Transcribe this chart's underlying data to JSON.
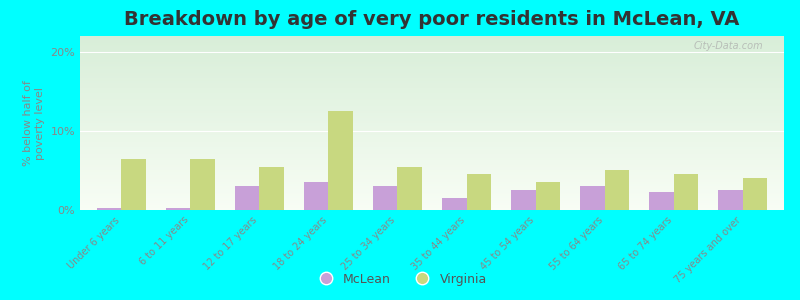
{
  "title": "Breakdown by age of very poor residents in McLean, VA",
  "categories": [
    "Under 6 years",
    "6 to 11 years",
    "12 to 17 years",
    "18 to 24 years",
    "25 to 34 years",
    "35 to 44 years",
    "45 to 54 years",
    "55 to 64 years",
    "65 to 74 years",
    "75 years and over"
  ],
  "mclean_values": [
    0.3,
    0.2,
    3.0,
    3.5,
    3.0,
    1.5,
    2.5,
    3.0,
    2.3,
    2.5
  ],
  "virginia_values": [
    6.5,
    6.5,
    5.5,
    12.5,
    5.5,
    4.5,
    3.5,
    5.0,
    4.5,
    4.0
  ],
  "mclean_color": "#c8a0d8",
  "virginia_color": "#c8d880",
  "background_color": "#00ffff",
  "grad_top": "#d8eed8",
  "grad_bot": "#f8fdf5",
  "title_fontsize": 14,
  "ylabel": "% below half of\npoverty level",
  "ylim": [
    0,
    22
  ],
  "yticks": [
    0,
    10,
    20
  ],
  "ytick_labels": [
    "0%",
    "10%",
    "20%"
  ],
  "bar_width": 0.35,
  "legend_labels": [
    "McLean",
    "Virginia"
  ],
  "watermark": "City-Data.com"
}
